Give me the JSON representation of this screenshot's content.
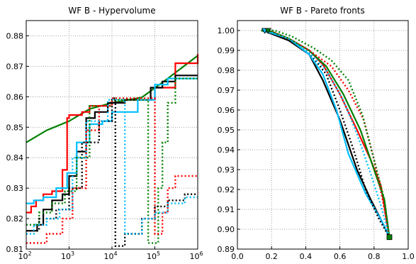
{
  "chart_data": [
    {
      "type": "line",
      "title": "WF B - Hypervolume",
      "xscale": "log",
      "xlim": [
        100,
        1000000
      ],
      "ylim": [
        0.81,
        0.885
      ],
      "grid": true,
      "x_ticks": [
        {
          "value": 100,
          "base": "10",
          "exp": "2"
        },
        {
          "value": 1000,
          "base": "10",
          "exp": "3"
        },
        {
          "value": 10000,
          "base": "10",
          "exp": "4"
        },
        {
          "value": 100000,
          "base": "10",
          "exp": "5"
        },
        {
          "value": 1000000,
          "base": "10",
          "exp": "6"
        }
      ],
      "y_ticks": [
        "0.81",
        "0.82",
        "0.83",
        "0.84",
        "0.85",
        "0.86",
        "0.87",
        "0.88"
      ],
      "series": [
        {
          "color": "#008000",
          "style": "solid",
          "step": false,
          "x": [
            100,
            300,
            1000,
            3000,
            10000,
            50000,
            200000,
            1000000
          ],
          "y": [
            0.845,
            0.849,
            0.852,
            0.856,
            0.858,
            0.8598,
            0.866,
            0.8735
          ]
        },
        {
          "color": "#ff0000",
          "style": "solid",
          "step": true,
          "x": [
            100,
            130,
            170,
            250,
            400,
            700,
            900,
            1000,
            2000,
            3000,
            8000,
            20000,
            100000,
            300000,
            1000000
          ],
          "y": [
            0.822,
            0.824,
            0.826,
            0.828,
            0.829,
            0.836,
            0.853,
            0.854,
            0.855,
            0.857,
            0.858,
            0.859,
            0.863,
            0.871,
            0.874
          ]
        },
        {
          "color": "#000000",
          "style": "solid",
          "step": true,
          "x": [
            100,
            180,
            250,
            400,
            700,
            1000,
            1500,
            2500,
            4000,
            8000,
            20000,
            80000,
            150000,
            300000,
            1000000
          ],
          "y": [
            0.816,
            0.818,
            0.823,
            0.826,
            0.828,
            0.834,
            0.842,
            0.853,
            0.855,
            0.858,
            0.859,
            0.863,
            0.865,
            0.867,
            0.867
          ]
        },
        {
          "color": "#00bfff",
          "style": "solid",
          "step": true,
          "x": [
            100,
            150,
            250,
            500,
            900,
            1500,
            3000,
            6000,
            10000,
            40000,
            100000,
            200000,
            1000000
          ],
          "y": [
            0.825,
            0.826,
            0.827,
            0.83,
            0.835,
            0.845,
            0.851,
            0.852,
            0.855,
            0.859,
            0.864,
            0.866,
            0.866
          ]
        },
        {
          "color": "#008000",
          "style": "dotted",
          "step": true,
          "x": [
            100,
            200,
            400,
            800,
            1500,
            3000,
            10000,
            30000,
            70000,
            120000,
            150000,
            200000,
            300000,
            1000000
          ],
          "y": [
            0.818,
            0.822,
            0.825,
            0.829,
            0.84,
            0.857,
            0.859,
            0.859,
            0.812,
            0.83,
            0.845,
            0.858,
            0.866,
            0.866
          ]
        },
        {
          "color": "#ff0000",
          "style": "dotted",
          "step": true,
          "x": [
            100,
            300,
            700,
            1200,
            2500,
            5000,
            10000,
            50000,
            100000,
            150000,
            200000,
            300000,
            1000000
          ],
          "y": [
            0.812,
            0.815,
            0.82,
            0.83,
            0.849,
            0.857,
            0.8595,
            0.8595,
            0.815,
            0.822,
            0.83,
            0.834,
            0.834
          ]
        },
        {
          "color": "#000000",
          "style": "dotted",
          "step": true,
          "x": [
            100,
            200,
            500,
            1000,
            2000,
            5000,
            10000,
            12000,
            20000,
            50000,
            100000,
            200000,
            500000,
            1000000
          ],
          "y": [
            0.816,
            0.82,
            0.823,
            0.83,
            0.845,
            0.852,
            0.8595,
            0.811,
            0.815,
            0.82,
            0.824,
            0.826,
            0.828,
            0.828
          ]
        },
        {
          "color": "#00bfff",
          "style": "dotted",
          "step": true,
          "x": [
            100,
            150,
            300,
            600,
            1200,
            2500,
            8000,
            20000,
            50000,
            100000,
            200000,
            500000,
            1000000
          ],
          "y": [
            0.815,
            0.818,
            0.82,
            0.823,
            0.84,
            0.852,
            0.859,
            0.815,
            0.82,
            0.822,
            0.825,
            0.827,
            0.827
          ]
        }
      ]
    },
    {
      "type": "line",
      "title": "WF B - Pareto fronts",
      "xlim": [
        0.0,
        1.0
      ],
      "ylim": [
        0.89,
        1.005
      ],
      "grid": true,
      "x_ticks": [
        "0.0",
        "0.2",
        "0.4",
        "0.6",
        "0.8",
        "1.0"
      ],
      "y_ticks": [
        "0.89",
        "0.90",
        "0.91",
        "0.92",
        "0.93",
        "0.94",
        "0.95",
        "0.96",
        "0.97",
        "0.98",
        "0.99",
        "1.00"
      ],
      "series": [
        {
          "color": "#000000",
          "style": "solid",
          "x": [
            0.14,
            0.18,
            0.3,
            0.42,
            0.5,
            0.6,
            0.7,
            0.78,
            0.84,
            0.89
          ],
          "y": [
            1.0,
            0.999,
            0.995,
            0.988,
            0.975,
            0.955,
            0.93,
            0.915,
            0.905,
            0.896
          ]
        },
        {
          "color": "#ff0000",
          "style": "solid",
          "x": [
            0.14,
            0.2,
            0.3,
            0.42,
            0.5,
            0.6,
            0.7,
            0.78,
            0.84,
            0.89
          ],
          "y": [
            1.0,
            0.9995,
            0.996,
            0.99,
            0.983,
            0.968,
            0.95,
            0.935,
            0.922,
            0.896
          ]
        },
        {
          "color": "#00bfff",
          "style": "solid",
          "x": [
            0.14,
            0.19,
            0.3,
            0.42,
            0.5,
            0.58,
            0.65,
            0.75,
            0.84,
            0.89
          ],
          "y": [
            1.0,
            0.999,
            0.996,
            0.988,
            0.978,
            0.96,
            0.938,
            0.918,
            0.905,
            0.896
          ]
        },
        {
          "color": "#008000",
          "style": "solid",
          "x": [
            0.14,
            0.2,
            0.3,
            0.42,
            0.52,
            0.62,
            0.72,
            0.8,
            0.86,
            0.89
          ],
          "y": [
            1.0,
            0.9995,
            0.996,
            0.99,
            0.982,
            0.968,
            0.95,
            0.93,
            0.915,
            0.896
          ]
        },
        {
          "color": "#000000",
          "style": "dotted",
          "x": [
            0.14,
            0.2,
            0.3,
            0.42,
            0.52,
            0.6,
            0.68,
            0.75,
            0.83,
            0.89
          ],
          "y": [
            1.0,
            0.999,
            0.996,
            0.989,
            0.978,
            0.96,
            0.94,
            0.92,
            0.905,
            0.896
          ]
        },
        {
          "color": "#ff0000",
          "style": "dotted",
          "x": [
            0.14,
            0.2,
            0.3,
            0.42,
            0.55,
            0.65,
            0.74,
            0.8,
            0.85,
            0.89
          ],
          "y": [
            1.0,
            0.9995,
            0.996,
            0.99,
            0.982,
            0.97,
            0.955,
            0.935,
            0.915,
            0.896
          ]
        },
        {
          "color": "#00bfff",
          "style": "dotted",
          "x": [
            0.14,
            0.2,
            0.3,
            0.42,
            0.52,
            0.62,
            0.7,
            0.78,
            0.84,
            0.89
          ],
          "y": [
            1.0,
            0.999,
            0.996,
            0.989,
            0.98,
            0.965,
            0.948,
            0.928,
            0.912,
            0.896
          ]
        },
        {
          "color": "#008000",
          "style": "dotted",
          "x": [
            0.14,
            0.22,
            0.32,
            0.45,
            0.55,
            0.65,
            0.73,
            0.8,
            0.86,
            0.89
          ],
          "y": [
            1.0,
            1.0,
            0.997,
            0.991,
            0.985,
            0.975,
            0.958,
            0.935,
            0.915,
            0.896
          ]
        }
      ],
      "markers": [
        {
          "shape": "triangle",
          "x": 0.16,
          "y": 1.0,
          "color": "#00bfff"
        },
        {
          "shape": "triangle",
          "x": 0.18,
          "y": 1.0,
          "color": "#008000"
        },
        {
          "shape": "square",
          "x": 0.89,
          "y": 0.896,
          "color": "#008000"
        }
      ]
    }
  ]
}
